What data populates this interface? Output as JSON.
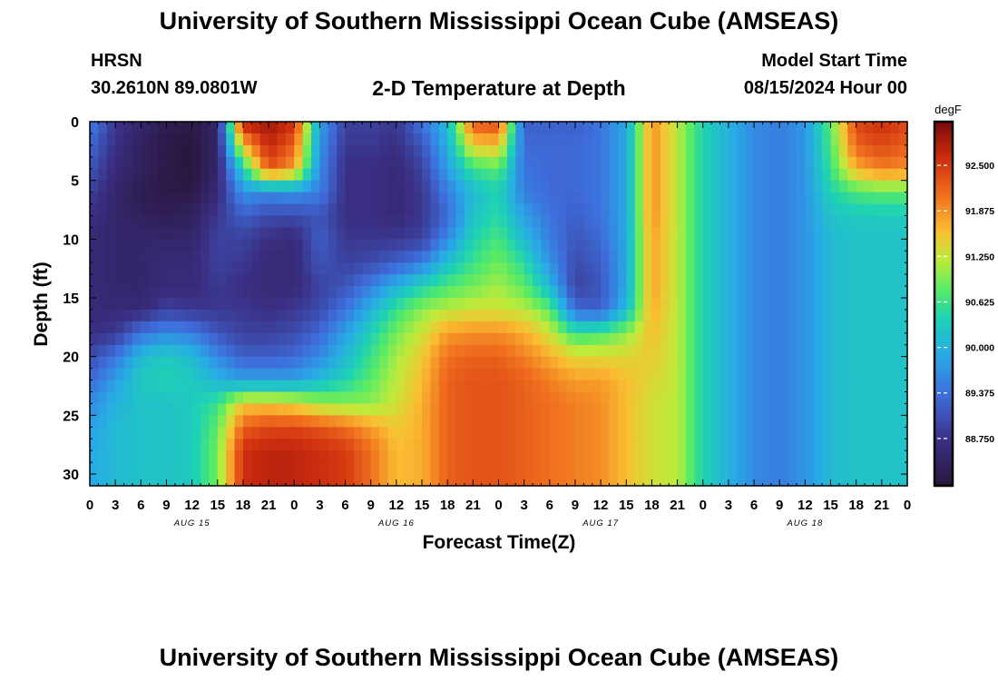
{
  "header": {
    "title": "University of Southern Mississippi Ocean Cube (AMSEAS)",
    "station": "HRSN",
    "coords": "30.2610N  89.0801W",
    "plot_title": "2-D Temperature at Depth",
    "model_start_label": "Model Start Time",
    "model_start_value": "08/15/2024 Hour 00"
  },
  "footer": {
    "title": "University of Southern Mississippi Ocean Cube (AMSEAS)"
  },
  "chart_data": {
    "type": "heatmap",
    "title": "2-D Temperature at Depth",
    "xlabel": "Forecast Time(Z)",
    "ylabel": "Depth (ft)",
    "x_ticks": [
      "0",
      "3",
      "6",
      "9",
      "12",
      "15",
      "18",
      "21",
      "0",
      "3",
      "6",
      "9",
      "12",
      "15",
      "18",
      "21",
      "0",
      "3",
      "6",
      "9",
      "12",
      "15",
      "18",
      "21",
      "0",
      "3",
      "6",
      "9",
      "12",
      "15",
      "18",
      "21",
      "0"
    ],
    "day_labels": [
      "AUG 15",
      "AUG 16",
      "AUG 17",
      "AUG 18"
    ],
    "y_ticks": [
      0,
      5,
      10,
      15,
      20,
      25,
      30
    ],
    "xlim_hours": [
      0,
      96
    ],
    "ylim": [
      0,
      31
    ],
    "y_inverted": true,
    "colorbar": {
      "unit": "degF",
      "ticks": [
        "92.500",
        "91.875",
        "91.250",
        "90.625",
        "90.000",
        "89.375",
        "88.750"
      ],
      "tick_values": [
        92.5,
        91.875,
        91.25,
        90.625,
        90.0,
        89.375,
        88.75
      ],
      "vmin": 88.1,
      "vmax": 93.1
    },
    "depths_ft": [
      0,
      2,
      4,
      6,
      8,
      10,
      12,
      14,
      16,
      18,
      20,
      22,
      24,
      26,
      28,
      30
    ],
    "hours": [
      0,
      3,
      6,
      9,
      12,
      15,
      18,
      21,
      24,
      27,
      30,
      33,
      36,
      39,
      42,
      45,
      48,
      51,
      54,
      57,
      60,
      63,
      66,
      69,
      72,
      75,
      78,
      81,
      84,
      87,
      90,
      93,
      96
    ],
    "temperature_degF": [
      [
        89.5,
        88.8,
        88.5,
        88.3,
        88.2,
        88.5,
        92.8,
        92.9,
        92.6,
        89.8,
        88.9,
        88.9,
        88.8,
        89.4,
        90.1,
        92.3,
        92.4,
        89.2,
        89.2,
        89.2,
        89.4,
        89.9,
        91.9,
        91.2,
        90.4,
        90.0,
        89.6,
        89.5,
        89.7,
        90.8,
        92.4,
        92.6,
        92.4
      ],
      [
        89.3,
        88.7,
        88.4,
        88.2,
        88.1,
        88.5,
        91.6,
        92.7,
        92.2,
        89.7,
        88.8,
        88.8,
        88.7,
        89.1,
        90.0,
        91.5,
        91.6,
        89.3,
        89.3,
        89.3,
        89.4,
        89.9,
        91.9,
        91.2,
        90.4,
        90.0,
        89.6,
        89.5,
        89.7,
        90.7,
        92.2,
        92.4,
        92.2
      ],
      [
        89.1,
        88.6,
        88.4,
        88.2,
        88.1,
        88.5,
        90.4,
        92.3,
        91.8,
        89.6,
        88.7,
        88.7,
        88.6,
        88.9,
        89.8,
        90.6,
        90.8,
        89.4,
        89.3,
        89.3,
        89.4,
        89.9,
        91.9,
        91.2,
        90.4,
        90.0,
        89.6,
        89.5,
        89.7,
        90.6,
        91.7,
        92.0,
        91.9
      ],
      [
        88.9,
        88.5,
        88.3,
        88.2,
        88.2,
        88.6,
        89.7,
        89.6,
        89.7,
        89.5,
        88.7,
        88.7,
        88.6,
        88.8,
        89.5,
        90.1,
        90.4,
        89.5,
        89.3,
        89.3,
        89.4,
        89.9,
        91.9,
        91.2,
        90.4,
        90.0,
        89.6,
        89.5,
        89.7,
        90.4,
        90.7,
        90.8,
        90.8
      ],
      [
        88.7,
        88.5,
        88.4,
        88.3,
        88.4,
        88.8,
        89.2,
        89.0,
        89.0,
        89.1,
        88.7,
        88.7,
        88.6,
        88.8,
        89.3,
        90.2,
        90.5,
        89.8,
        89.4,
        89.2,
        89.4,
        89.9,
        91.9,
        91.2,
        90.4,
        90.0,
        89.6,
        89.5,
        89.7,
        90.2,
        90.3,
        90.3,
        90.3
      ],
      [
        88.6,
        88.5,
        88.5,
        88.5,
        88.5,
        88.9,
        88.9,
        88.7,
        88.6,
        89.2,
        88.8,
        88.8,
        88.8,
        88.9,
        89.6,
        90.4,
        90.7,
        90.1,
        89.5,
        89.1,
        89.3,
        89.9,
        91.8,
        91.2,
        90.4,
        90.0,
        89.6,
        89.5,
        89.7,
        90.1,
        90.2,
        90.2,
        90.2
      ],
      [
        88.6,
        88.5,
        88.5,
        88.6,
        88.6,
        88.9,
        88.8,
        88.6,
        88.6,
        89.1,
        88.9,
        89.0,
        89.2,
        89.5,
        90.2,
        90.6,
        90.9,
        90.5,
        89.7,
        89.0,
        89.2,
        89.9,
        91.8,
        91.2,
        90.4,
        90.0,
        89.6,
        89.5,
        89.7,
        90.1,
        90.2,
        90.2,
        90.2
      ],
      [
        88.6,
        88.5,
        88.5,
        88.6,
        88.6,
        88.8,
        88.7,
        88.6,
        88.6,
        88.9,
        89.1,
        89.5,
        90.0,
        90.4,
        90.7,
        90.9,
        91.1,
        90.8,
        90.1,
        88.9,
        89.1,
        89.9,
        91.8,
        91.2,
        90.4,
        90.0,
        89.6,
        89.5,
        89.7,
        90.1,
        90.2,
        90.2,
        90.2
      ],
      [
        88.6,
        88.6,
        88.6,
        88.9,
        88.8,
        88.8,
        88.8,
        88.7,
        88.8,
        89.0,
        89.4,
        90.0,
        90.6,
        91.0,
        91.2,
        91.3,
        91.3,
        91.2,
        90.8,
        89.3,
        89.2,
        90.1,
        91.7,
        91.2,
        90.4,
        90.0,
        89.6,
        89.5,
        89.7,
        90.1,
        90.2,
        90.2,
        90.2
      ],
      [
        88.7,
        88.8,
        89.4,
        89.6,
        89.5,
        89.1,
        88.9,
        88.9,
        89.0,
        89.3,
        89.8,
        90.4,
        90.9,
        91.3,
        91.8,
        91.9,
        91.9,
        91.7,
        91.3,
        90.6,
        90.7,
        91.0,
        91.6,
        91.2,
        90.4,
        90.0,
        89.6,
        89.5,
        89.7,
        90.1,
        90.2,
        90.2,
        90.2
      ],
      [
        89.0,
        89.4,
        90.1,
        90.3,
        90.1,
        89.6,
        89.2,
        89.2,
        89.3,
        89.6,
        90.1,
        90.6,
        91.1,
        91.5,
        92.1,
        92.2,
        92.2,
        92.0,
        91.7,
        91.4,
        91.4,
        91.4,
        91.5,
        91.2,
        90.4,
        90.0,
        89.6,
        89.5,
        89.7,
        90.1,
        90.2,
        90.2,
        90.2
      ],
      [
        89.3,
        89.8,
        90.3,
        90.4,
        90.3,
        90.0,
        89.8,
        89.8,
        89.8,
        90.1,
        90.4,
        90.8,
        91.2,
        91.6,
        92.2,
        92.3,
        92.3,
        92.2,
        92.0,
        91.8,
        91.8,
        91.6,
        91.4,
        91.2,
        90.4,
        90.0,
        89.6,
        89.5,
        89.7,
        90.1,
        90.2,
        90.2,
        90.2
      ],
      [
        89.6,
        90.0,
        90.2,
        90.2,
        90.3,
        90.6,
        91.5,
        91.5,
        91.4,
        91.1,
        91.0,
        91.0,
        91.3,
        91.7,
        92.2,
        92.3,
        92.3,
        92.2,
        92.1,
        92.0,
        91.9,
        91.6,
        91.3,
        91.2,
        90.4,
        90.0,
        89.6,
        89.5,
        89.7,
        90.1,
        90.2,
        90.2,
        90.2
      ],
      [
        89.8,
        90.1,
        90.2,
        90.2,
        90.3,
        90.8,
        92.2,
        92.4,
        92.4,
        92.3,
        92.1,
        91.8,
        91.5,
        91.7,
        92.2,
        92.3,
        92.3,
        92.2,
        92.1,
        92.0,
        91.9,
        91.6,
        91.3,
        91.2,
        90.4,
        90.0,
        89.6,
        89.5,
        89.7,
        90.1,
        90.2,
        90.2,
        90.2
      ],
      [
        89.9,
        90.1,
        90.2,
        90.2,
        90.3,
        90.9,
        92.6,
        92.7,
        92.7,
        92.6,
        92.5,
        92.1,
        91.6,
        91.7,
        92.2,
        92.3,
        92.3,
        92.2,
        92.1,
        92.0,
        91.9,
        91.6,
        91.3,
        91.2,
        90.4,
        90.0,
        89.6,
        89.5,
        89.7,
        90.1,
        90.2,
        90.2,
        90.2
      ],
      [
        89.9,
        90.1,
        90.2,
        90.2,
        90.3,
        90.9,
        92.6,
        92.7,
        92.7,
        92.6,
        92.5,
        92.1,
        91.6,
        91.7,
        92.2,
        92.3,
        92.3,
        92.2,
        92.1,
        92.0,
        91.9,
        91.6,
        91.3,
        91.2,
        90.4,
        90.0,
        89.6,
        89.5,
        89.7,
        90.1,
        90.2,
        90.2,
        90.2
      ]
    ]
  }
}
